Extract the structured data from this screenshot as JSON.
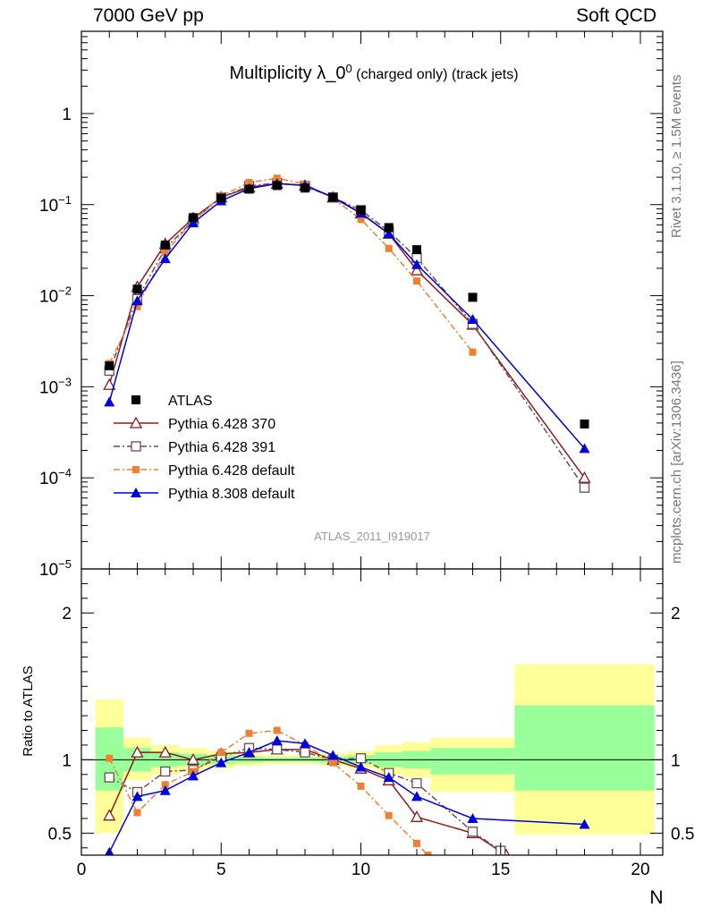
{
  "header": {
    "left": "7000 GeV pp",
    "right": "Soft QCD"
  },
  "side_labels": {
    "top": "Rivet 3.1.10, ≥ 1.5M events",
    "bottom": "mcplots.cern.ch [arXiv:1306.3436]"
  },
  "analysis_id": "ATLAS_2011_I919017",
  "chart_data": [
    {
      "type": "scatter",
      "title": "Multiplicity λ_0⁰ (charged only) (track jets)",
      "title_main": "Multiplicity λ_0",
      "title_sup": "0",
      "title_suffix": " (charged only) (track jets)",
      "xlabel": "N",
      "ylabel": "",
      "xlim": [
        0,
        20.8
      ],
      "ylim": [
        1e-05,
        8
      ],
      "yscale": "log",
      "yticklabels": [
        {
          "value": 1,
          "base": "1",
          "exp": ""
        },
        {
          "value": 0.1,
          "base": "10",
          "exp": "−1"
        },
        {
          "value": 0.01,
          "base": "10",
          "exp": "−2"
        },
        {
          "value": 0.001,
          "base": "10",
          "exp": "−3"
        },
        {
          "value": 0.0001,
          "base": "10",
          "exp": "−4"
        },
        {
          "value": 1e-05,
          "base": "10",
          "exp": "−5"
        }
      ],
      "legend_position": "bottom-left",
      "series": [
        {
          "name": "ATLAS",
          "color": "#000000",
          "marker": "square-filled",
          "line": "none",
          "x": [
            1,
            2,
            3,
            4,
            5,
            6,
            7,
            8,
            9,
            10,
            11,
            12,
            14,
            18
          ],
          "y": [
            0.0017,
            0.0118,
            0.036,
            0.072,
            0.118,
            0.148,
            0.162,
            0.152,
            0.12,
            0.087,
            0.056,
            0.032,
            0.0096,
            0.00039
          ]
        },
        {
          "name": "Pythia 6.428 370",
          "color": "#8b1a1a",
          "marker": "triangle-open",
          "line": "solid",
          "x": [
            1,
            2,
            3,
            4,
            5,
            6,
            7,
            8,
            9,
            10,
            11,
            12,
            14,
            18
          ],
          "y": [
            0.00105,
            0.0125,
            0.037,
            0.071,
            0.12,
            0.155,
            0.17,
            0.162,
            0.12,
            0.08,
            0.048,
            0.019,
            0.0048,
            0.0001
          ]
        },
        {
          "name": "Pythia 6.428 391",
          "color": "#6b4a5a",
          "marker": "square-open",
          "line": "dashdot",
          "x": [
            1,
            2,
            3,
            4,
            5,
            6,
            7,
            8,
            9,
            10,
            11,
            12,
            14,
            18
          ],
          "y": [
            0.0015,
            0.0092,
            0.033,
            0.067,
            0.12,
            0.16,
            0.173,
            0.16,
            0.12,
            0.087,
            0.051,
            0.026,
            0.0049,
            7.8e-05
          ]
        },
        {
          "name": "Pythia 6.428 default",
          "color": "#f08030",
          "marker": "square-filled-small",
          "line": "dashdot",
          "x": [
            1,
            2,
            3,
            4,
            5,
            6,
            7,
            8,
            9,
            10,
            11,
            12,
            14
          ],
          "y": [
            0.0018,
            0.0076,
            0.03,
            0.066,
            0.124,
            0.175,
            0.195,
            0.168,
            0.117,
            0.069,
            0.033,
            0.0145,
            0.0024
          ]
        },
        {
          "name": "Pythia 8.308 default",
          "color": "#0000dd",
          "marker": "triangle-filled",
          "line": "solid",
          "x": [
            1,
            2,
            3,
            4,
            5,
            6,
            7,
            8,
            9,
            10,
            11,
            12,
            14,
            18
          ],
          "y": [
            0.00068,
            0.0088,
            0.0255,
            0.063,
            0.11,
            0.15,
            0.17,
            0.163,
            0.121,
            0.081,
            0.048,
            0.022,
            0.0055,
            0.00021
          ]
        }
      ]
    },
    {
      "type": "scatter",
      "title": "",
      "xlabel": "N",
      "ylabel": "Ratio to ATLAS",
      "xlim": [
        0,
        20.8
      ],
      "ylim": [
        0.35,
        2.3
      ],
      "xticks": [
        0,
        5,
        10,
        15,
        20
      ],
      "yticks": [
        0.5,
        1,
        2
      ],
      "bands": [
        {
          "x0": 0.5,
          "x1": 1.5,
          "lo_yellow": 0.5,
          "hi_yellow": 1.41,
          "lo_green": 0.79,
          "hi_green": 1.22
        },
        {
          "x0": 1.5,
          "x1": 2.5,
          "lo_yellow": 0.86,
          "hi_yellow": 1.15,
          "lo_green": 0.92,
          "hi_green": 1.08
        },
        {
          "x0": 2.5,
          "x1": 3.5,
          "lo_yellow": 0.9,
          "hi_yellow": 1.1,
          "lo_green": 0.95,
          "hi_green": 1.05
        },
        {
          "x0": 3.5,
          "x1": 4.5,
          "lo_yellow": 0.92,
          "hi_yellow": 1.08,
          "lo_green": 0.96,
          "hi_green": 1.04
        },
        {
          "x0": 4.5,
          "x1": 5.5,
          "lo_yellow": 0.94,
          "hi_yellow": 1.06,
          "lo_green": 0.97,
          "hi_green": 1.03
        },
        {
          "x0": 5.5,
          "x1": 6.5,
          "lo_yellow": 0.96,
          "hi_yellow": 1.04,
          "lo_green": 0.98,
          "hi_green": 1.02
        },
        {
          "x0": 6.5,
          "x1": 7.5,
          "lo_yellow": 0.97,
          "hi_yellow": 1.03,
          "lo_green": 0.985,
          "hi_green": 1.015
        },
        {
          "x0": 7.5,
          "x1": 8.5,
          "lo_yellow": 0.97,
          "hi_yellow": 1.03,
          "lo_green": 0.985,
          "hi_green": 1.015
        },
        {
          "x0": 8.5,
          "x1": 9.5,
          "lo_yellow": 0.96,
          "hi_yellow": 1.04,
          "lo_green": 0.98,
          "hi_green": 1.02
        },
        {
          "x0": 9.5,
          "x1": 10.5,
          "lo_yellow": 0.94,
          "hi_yellow": 1.06,
          "lo_green": 0.97,
          "hi_green": 1.03
        },
        {
          "x0": 10.5,
          "x1": 11.5,
          "lo_yellow": 0.9,
          "hi_yellow": 1.1,
          "lo_green": 0.95,
          "hi_green": 1.05
        },
        {
          "x0": 11.5,
          "x1": 12.5,
          "lo_yellow": 0.88,
          "hi_yellow": 1.12,
          "lo_green": 0.94,
          "hi_green": 1.06
        },
        {
          "x0": 12.5,
          "x1": 15.5,
          "lo_yellow": 0.78,
          "hi_yellow": 1.15,
          "lo_green": 0.9,
          "hi_green": 1.08
        },
        {
          "x0": 15.5,
          "x1": 20.5,
          "lo_yellow": 0.49,
          "hi_yellow": 1.65,
          "lo_green": 0.79,
          "hi_green": 1.37
        }
      ],
      "series": [
        {
          "name": "Pythia 6.428 370",
          "color": "#8b1a1a",
          "marker": "triangle-open",
          "line": "solid",
          "x": [
            1,
            2,
            3,
            4,
            5,
            6,
            7,
            8,
            9,
            10,
            11,
            12,
            14,
            15.2
          ],
          "y": [
            0.62,
            1.05,
            1.05,
            1.0,
            1.04,
            1.05,
            1.07,
            1.07,
            1.0,
            0.94,
            0.86,
            0.61,
            0.5,
            0.35
          ]
        },
        {
          "name": "Pythia 6.428 391",
          "color": "#6b4a5a",
          "marker": "square-open",
          "line": "dashdot",
          "x": [
            1,
            2,
            3,
            4,
            5,
            6,
            7,
            8,
            9,
            10,
            11,
            12,
            14,
            15
          ],
          "y": [
            0.88,
            0.78,
            0.92,
            0.93,
            1.02,
            1.08,
            1.07,
            1.05,
            1.0,
            1.01,
            0.91,
            0.84,
            0.51,
            0.38
          ]
        },
        {
          "name": "Pythia 6.428 default",
          "color": "#f08030",
          "marker": "square-filled-small",
          "line": "dashdot",
          "x": [
            1,
            2,
            3,
            4,
            5,
            6,
            7,
            8,
            9,
            10,
            11,
            12,
            12.4
          ],
          "y": [
            1.01,
            0.64,
            0.83,
            0.92,
            1.05,
            1.18,
            1.2,
            1.1,
            0.98,
            0.82,
            0.62,
            0.43,
            0.35
          ]
        },
        {
          "name": "Pythia 8.308 default",
          "color": "#0000dd",
          "marker": "triangle-filled",
          "line": "solid",
          "x": [
            1,
            2,
            3,
            4,
            5,
            6,
            7,
            8,
            9,
            10,
            11,
            12,
            14,
            18
          ],
          "y": [
            0.37,
            0.75,
            0.79,
            0.89,
            0.98,
            1.05,
            1.13,
            1.11,
            1.03,
            0.95,
            0.88,
            0.75,
            0.6,
            0.56
          ]
        }
      ]
    }
  ]
}
